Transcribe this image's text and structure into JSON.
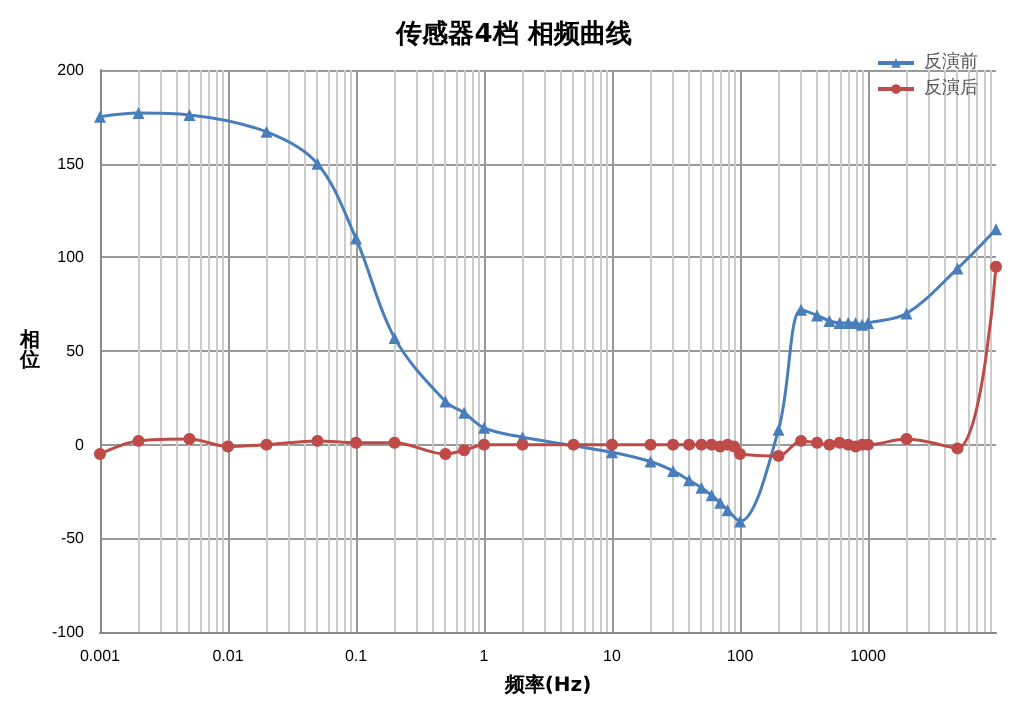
{
  "chart_data": {
    "type": "line",
    "title": "传感器4档 相频曲线",
    "xlabel": "频率(Hz)",
    "ylabel": "相位",
    "log": "x",
    "grid": true,
    "legend": "top right",
    "xlim": [
      0.001,
      10000
    ],
    "xticks": [
      0.001,
      0.01,
      0.1,
      1,
      10,
      100,
      1000
    ],
    "ylim": [
      -100,
      200
    ],
    "yticks": [
      -100,
      -50,
      0,
      50,
      100,
      150,
      200
    ],
    "series": [
      {
        "name": "反演前",
        "color": "#4a7ebb",
        "marker": "triangle",
        "x": [
          0.001,
          0.002,
          0.005,
          0.02,
          0.05,
          0.1,
          0.2,
          0.5,
          0.7,
          1,
          2,
          10,
          20,
          30,
          40,
          50,
          60,
          70,
          80,
          100,
          200,
          300,
          400,
          500,
          600,
          700,
          800,
          900,
          1000,
          2000,
          5000,
          10000
        ],
        "values": [
          175,
          177,
          176,
          167,
          150,
          110,
          57,
          23,
          17,
          9,
          4,
          -4,
          -9,
          -14,
          -19,
          -23,
          -27,
          -31,
          -35,
          -41,
          8,
          72,
          69,
          66,
          65,
          65,
          65,
          64,
          65,
          70,
          94,
          115
        ]
      },
      {
        "name": "反演后",
        "color": "#be4b48",
        "marker": "circle",
        "x": [
          0.001,
          0.002,
          0.005,
          0.01,
          0.02,
          0.05,
          0.1,
          0.2,
          0.5,
          0.7,
          1,
          2,
          5,
          10,
          20,
          30,
          40,
          50,
          60,
          70,
          80,
          90,
          100,
          200,
          300,
          400,
          500,
          600,
          700,
          800,
          900,
          1000,
          2000,
          5000,
          10000
        ],
        "values": [
          -5,
          2,
          3,
          -1,
          0,
          2,
          1,
          1,
          -5,
          -3,
          0,
          0,
          0,
          0,
          0,
          0,
          0,
          0,
          0,
          -1,
          0,
          -1,
          -5,
          -6,
          2,
          1,
          0,
          1,
          0,
          -1,
          0,
          0,
          3,
          -2,
          95
        ]
      }
    ]
  }
}
